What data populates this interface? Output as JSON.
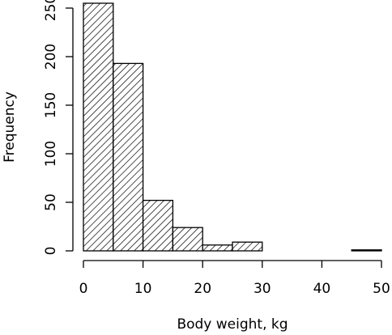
{
  "chart_data": {
    "type": "bar",
    "xlabel": "Body weight, kg",
    "ylabel": "Frequency",
    "xlim": [
      0,
      50
    ],
    "ylim": [
      0,
      250
    ],
    "x_ticks": [
      0,
      10,
      20,
      30,
      40,
      50
    ],
    "y_ticks": [
      0,
      50,
      100,
      150,
      200,
      250
    ],
    "bins": [
      {
        "start": 0,
        "end": 5,
        "value": 255
      },
      {
        "start": 5,
        "end": 10,
        "value": 193
      },
      {
        "start": 10,
        "end": 15,
        "value": 52
      },
      {
        "start": 15,
        "end": 20,
        "value": 24
      },
      {
        "start": 20,
        "end": 25,
        "value": 6
      },
      {
        "start": 25,
        "end": 30,
        "value": 9
      },
      {
        "start": 30,
        "end": 35,
        "value": 0
      },
      {
        "start": 35,
        "end": 40,
        "value": 0
      },
      {
        "start": 40,
        "end": 45,
        "value": 0
      },
      {
        "start": 45,
        "end": 50,
        "value": 1
      }
    ],
    "grid": false,
    "fill_pattern": "diagonal-hatch",
    "colors": {
      "bar_fill": "#ffffff",
      "hatch": "#000000",
      "axis": "#000000"
    }
  }
}
